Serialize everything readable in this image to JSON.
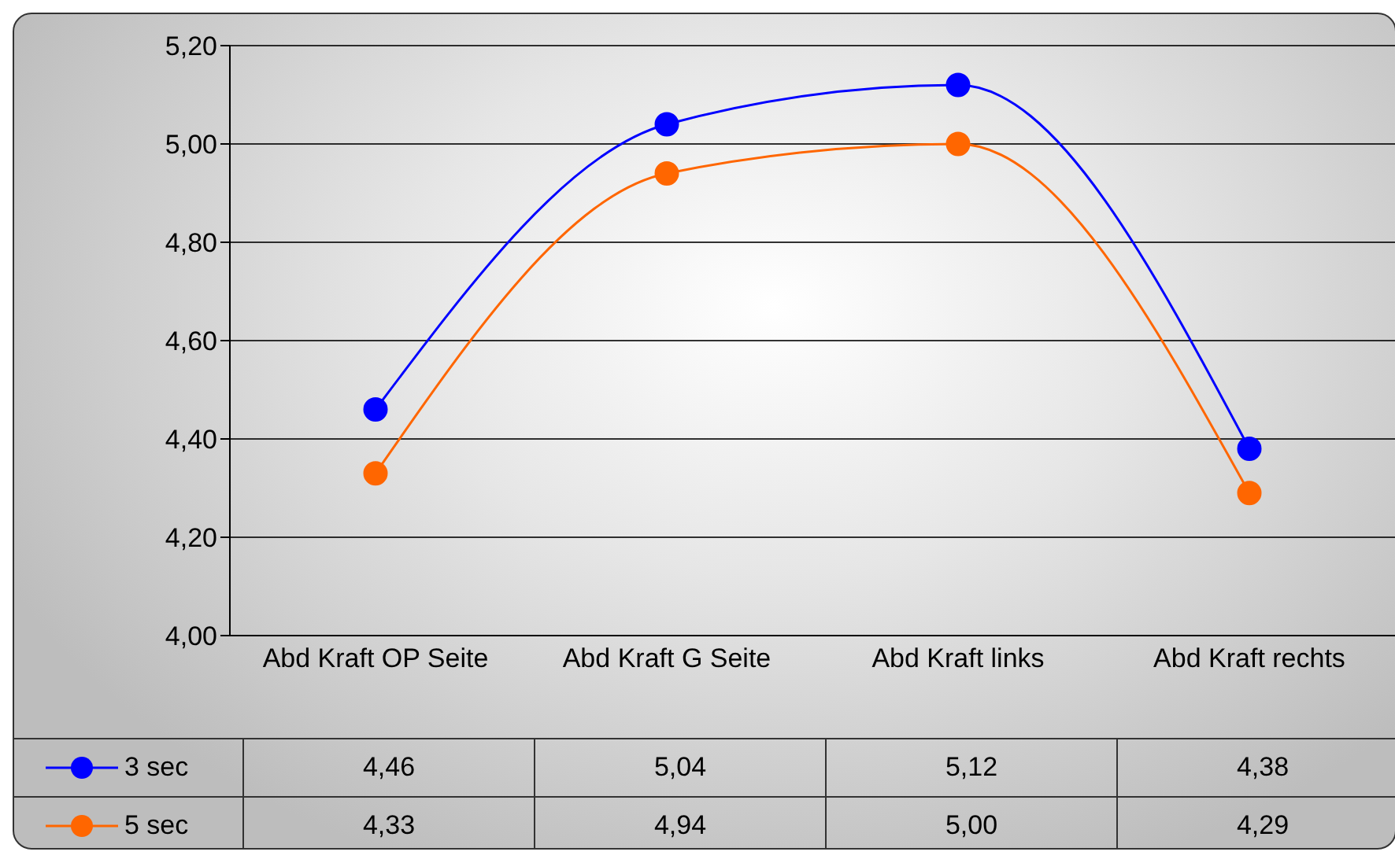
{
  "chart_data": {
    "type": "line",
    "categories": [
      "Abd Kraft OP Seite",
      "Abd Kraft G Seite",
      "Abd Kraft links",
      "Abd Kraft rechts"
    ],
    "series": [
      {
        "name": "3 sec",
        "color": "#0000ff",
        "values": [
          4.46,
          5.04,
          5.12,
          4.38
        ],
        "value_labels": [
          "4,46",
          "5,04",
          "5,12",
          "4,38"
        ]
      },
      {
        "name": "5 sec",
        "color": "#ff6600",
        "values": [
          4.33,
          4.94,
          5.0,
          4.29
        ],
        "value_labels": [
          "4,33",
          "4,94",
          "5,00",
          "4,29"
        ]
      }
    ],
    "ylim": [
      4.0,
      5.2
    ],
    "yticks": [
      {
        "value": 4.0,
        "label": "4,00"
      },
      {
        "value": 4.2,
        "label": "4,20"
      },
      {
        "value": 4.4,
        "label": "4,40"
      },
      {
        "value": 4.6,
        "label": "4,60"
      },
      {
        "value": 4.8,
        "label": "4,80"
      },
      {
        "value": 5.0,
        "label": "5,00"
      },
      {
        "value": 5.2,
        "label": "5,20"
      }
    ],
    "grid": "y",
    "legend": "bottom left",
    "marker": "circle",
    "line_style": "solid"
  }
}
